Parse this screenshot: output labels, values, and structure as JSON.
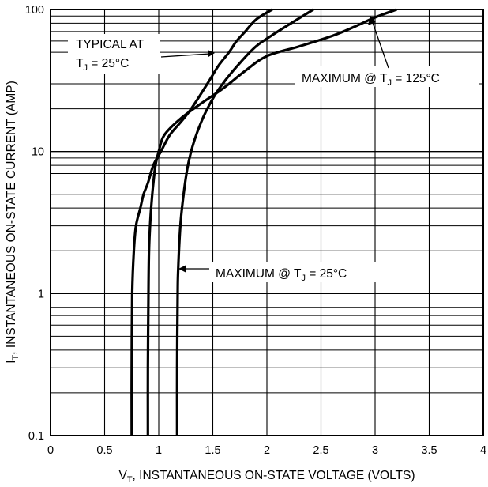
{
  "chart_data": {
    "type": "line",
    "xlabel": {
      "prefix": "V",
      "sub": "T",
      "rest": ", INSTANTANEOUS ON-STATE VOLTAGE (VOLTS)"
    },
    "ylabel": {
      "prefix": "I",
      "sub": "T",
      "rest": ", INSTANTANEOUS ON-STATE CURRENT (AMP)"
    },
    "xlim": [
      0,
      4
    ],
    "ylim": [
      0.1,
      100
    ],
    "y_scale": "log",
    "grid": true,
    "x_ticks": [
      {
        "value": 0,
        "label": "0"
      },
      {
        "value": 0.5,
        "label": "0.5"
      },
      {
        "value": 1,
        "label": "1"
      },
      {
        "value": 1.5,
        "label": "1.5"
      },
      {
        "value": 2,
        "label": "2"
      },
      {
        "value": 2.5,
        "label": "2.5"
      },
      {
        "value": 3,
        "label": "3"
      },
      {
        "value": 3.5,
        "label": "3.5"
      },
      {
        "value": 4,
        "label": "4"
      }
    ],
    "y_ticks": [
      {
        "value": 0.1,
        "label": "0.1"
      },
      {
        "value": 1,
        "label": "1"
      },
      {
        "value": 10,
        "label": "10"
      },
      {
        "value": 100,
        "label": "100"
      }
    ],
    "annotations": {
      "typical": {
        "line1": "TYPICAL AT",
        "t": "T",
        "j": "J",
        "rest": " = 25°C"
      },
      "max125": {
        "text": "MAXIMUM @ T",
        "j": "J",
        "rest": " = 125°C"
      },
      "max25": {
        "text": "MAXIMUM @ T",
        "j": "J",
        "rest": " = 25°C"
      }
    },
    "series": [
      {
        "id": "typical_25c",
        "points": [
          [
            0.75,
            0.1
          ],
          [
            0.75,
            0.3
          ],
          [
            0.755,
            1
          ],
          [
            0.77,
            2
          ],
          [
            0.79,
            3
          ],
          [
            0.83,
            4
          ],
          [
            0.86,
            5
          ],
          [
            0.9,
            6
          ],
          [
            0.95,
            8
          ],
          [
            1.02,
            10
          ],
          [
            1.1,
            13
          ],
          [
            1.2,
            16
          ],
          [
            1.3,
            20
          ],
          [
            1.45,
            30
          ],
          [
            1.55,
            40
          ],
          [
            1.65,
            50
          ],
          [
            1.72,
            60
          ],
          [
            1.8,
            70
          ],
          [
            1.9,
            85
          ],
          [
            2.05,
            100
          ]
        ]
      },
      {
        "id": "maximum_125c",
        "points": [
          [
            0.9,
            0.1
          ],
          [
            0.9,
            0.3
          ],
          [
            0.905,
            1
          ],
          [
            0.91,
            2
          ],
          [
            0.92,
            3
          ],
          [
            0.93,
            4
          ],
          [
            0.95,
            6
          ],
          [
            0.97,
            8
          ],
          [
            1.0,
            10
          ],
          [
            1.05,
            13
          ],
          [
            1.2,
            17
          ],
          [
            1.4,
            22
          ],
          [
            1.6,
            28
          ],
          [
            1.8,
            37
          ],
          [
            2.0,
            47
          ],
          [
            2.3,
            55
          ],
          [
            2.6,
            65
          ],
          [
            2.8,
            75
          ],
          [
            3.0,
            88
          ],
          [
            3.2,
            100
          ]
        ]
      },
      {
        "id": "maximum_25c",
        "points": [
          [
            1.17,
            0.1
          ],
          [
            1.17,
            0.3
          ],
          [
            1.175,
            1
          ],
          [
            1.18,
            1.5
          ],
          [
            1.2,
            3
          ],
          [
            1.23,
            5
          ],
          [
            1.27,
            8
          ],
          [
            1.33,
            12
          ],
          [
            1.42,
            18
          ],
          [
            1.52,
            25
          ],
          [
            1.62,
            32
          ],
          [
            1.75,
            42
          ],
          [
            1.9,
            55
          ],
          [
            2.05,
            66
          ],
          [
            2.2,
            78
          ],
          [
            2.43,
            100
          ]
        ]
      }
    ]
  }
}
